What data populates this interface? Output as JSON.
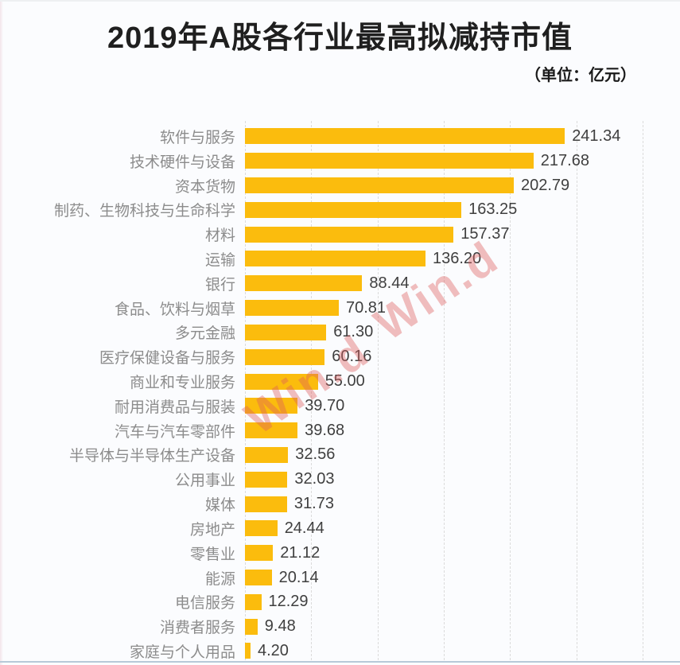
{
  "title": "2019年A股各行业最高拟减持市值",
  "unit_label": "（单位：亿元）",
  "watermark": {
    "text": "Win.d"
  },
  "colors": {
    "bar": "#FBBC0D",
    "category_label": "#8C8C8C",
    "value_label": "#3F3F3F",
    "gridline": "#DBDBDB",
    "watermark": "rgba(222,93,93,0.40)",
    "background": "#FBFCFE",
    "bottom_border": "#B7C9D8",
    "title_text": "#1F1F1F"
  },
  "chart_data": {
    "type": "bar",
    "orientation": "horizontal",
    "title": "2019年A股各行业最高拟减持市值",
    "unit": "亿元",
    "categories": [
      "软件与服务",
      "技术硬件与设备",
      "资本货物",
      "制药、生物科技与生命科学",
      "材料",
      "运输",
      "银行",
      "食品、饮料与烟草",
      "多元金融",
      "医疗保健设备与服务",
      "商业和专业服务",
      "耐用消费品与服装",
      "汽车与汽车零部件",
      "半导体与半导体生产设备",
      "公用事业",
      "媒体",
      "房地产",
      "零售业",
      "能源",
      "电信服务",
      "消费者服务",
      "家庭与个人用品"
    ],
    "values": [
      241.34,
      217.68,
      202.79,
      163.25,
      157.37,
      136.2,
      88.44,
      70.81,
      61.3,
      60.16,
      55.0,
      39.7,
      39.68,
      32.56,
      32.03,
      31.73,
      24.44,
      21.12,
      20.14,
      12.29,
      9.48,
      4.2
    ],
    "xlim": [
      0,
      300
    ],
    "gridline_interval": 50,
    "grid": true,
    "legend": false,
    "value_label_format": "2-decimals at bar end",
    "bar_label_position": "right-of-bar"
  }
}
